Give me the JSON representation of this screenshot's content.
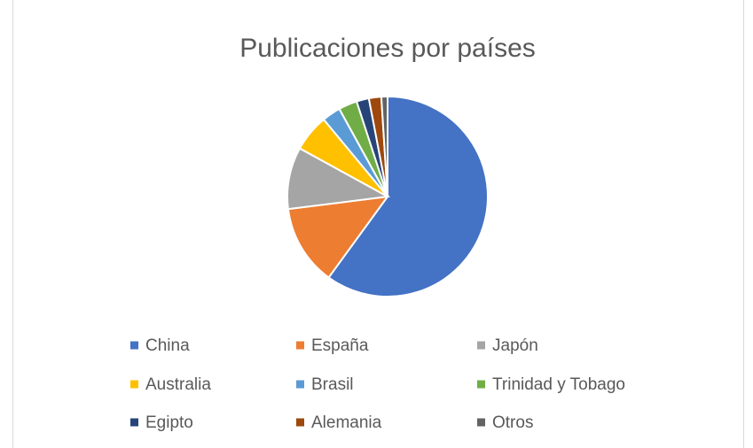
{
  "chart_data": {
    "type": "pie",
    "title": "Publicaciones por países",
    "categories": [
      "China",
      "España",
      "Japón",
      "Australia",
      "Brasil",
      "Trinidad y Tobago",
      "Egipto",
      "Alemania",
      "Otros"
    ],
    "values": [
      60,
      13,
      10,
      6,
      3,
      3,
      2,
      2,
      1
    ],
    "colors": [
      "#4472C4",
      "#ED7D31",
      "#A5A5A5",
      "#FFC000",
      "#5B9BD5",
      "#70AD47",
      "#264478",
      "#9E480E",
      "#636363"
    ],
    "legend": "bottom"
  }
}
